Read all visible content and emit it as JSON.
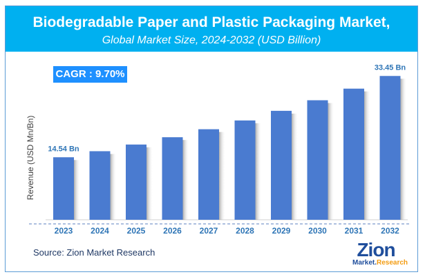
{
  "header": {
    "title": "Biodegradable Paper and Plastic Packaging Market,",
    "subtitle": "Global Market Size, 2024-2032 (USD Billion)"
  },
  "cagr": "CAGR :  9.70%",
  "source": "Source: Zion Market Research",
  "logo": {
    "text": "Zion",
    "tagline_1": "Market.",
    "tagline_2": "Research"
  },
  "colors": {
    "header": "#00b0f0",
    "bar": "#4a7bd0",
    "label": "#2e75b6"
  },
  "chart_data": {
    "type": "bar",
    "title": "Biodegradable Paper and Plastic Packaging Market, Global Market Size, 2024-2032 (USD Billion)",
    "ylabel": "Revenue (USD Mn/Bn)",
    "xlabel": "",
    "categories": [
      "2023",
      "2024",
      "2025",
      "2026",
      "2027",
      "2028",
      "2029",
      "2030",
      "2031",
      "2032"
    ],
    "values": [
      14.54,
      15.95,
      17.5,
      19.2,
      21.06,
      23.1,
      25.34,
      27.8,
      30.5,
      33.45
    ],
    "data_labels": {
      "0": "14.54 Bn",
      "9": "33.45 Bn"
    },
    "ylim": [
      0,
      35
    ],
    "grid": false,
    "legend": "none"
  }
}
